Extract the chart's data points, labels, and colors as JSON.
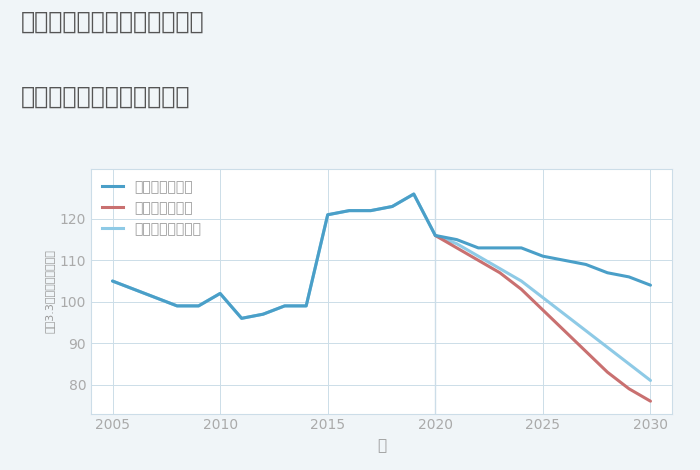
{
  "title_line1": "愛知県稲沢市平和町中三宅の",
  "title_line2": "中古マンションの価格推移",
  "xlabel": "年",
  "ylabel": "坪（3.3㎡）単価（万円）",
  "background_color": "#f0f5f8",
  "plot_background": "#ffffff",
  "good_scenario": {
    "label": "グッドシナリオ",
    "color": "#4a9fc8",
    "years": [
      2005,
      2008,
      2009,
      2010,
      2011,
      2012,
      2013,
      2014,
      2015,
      2016,
      2017,
      2018,
      2019,
      2020,
      2021,
      2022,
      2023,
      2024,
      2025,
      2026,
      2027,
      2028,
      2029,
      2030
    ],
    "values": [
      105,
      99,
      99,
      102,
      96,
      97,
      99,
      99,
      121,
      122,
      122,
      123,
      126,
      116,
      115,
      113,
      113,
      113,
      111,
      110,
      109,
      107,
      106,
      104
    ],
    "linewidth": 2.2,
    "zorder": 4
  },
  "bad_scenario": {
    "label": "バッドシナリオ",
    "color": "#c97070",
    "years": [
      2020,
      2021,
      2022,
      2023,
      2024,
      2025,
      2026,
      2027,
      2028,
      2029,
      2030
    ],
    "values": [
      116,
      113,
      110,
      107,
      103,
      98,
      93,
      88,
      83,
      79,
      76
    ],
    "linewidth": 2.2,
    "zorder": 3
  },
  "normal_scenario": {
    "label": "ノーマルシナリオ",
    "color": "#8ecae6",
    "years": [
      2005,
      2008,
      2009,
      2010,
      2011,
      2012,
      2013,
      2014,
      2015,
      2016,
      2017,
      2018,
      2019,
      2020,
      2021,
      2022,
      2023,
      2024,
      2025,
      2026,
      2027,
      2028,
      2029,
      2030
    ],
    "values": [
      105,
      99,
      99,
      102,
      96,
      97,
      99,
      99,
      121,
      122,
      122,
      123,
      126,
      116,
      114,
      111,
      108,
      105,
      101,
      97,
      93,
      89,
      85,
      81
    ],
    "linewidth": 2.2,
    "zorder": 2
  },
  "ylim": [
    73,
    132
  ],
  "yticks": [
    80,
    90,
    100,
    110,
    120
  ],
  "xlim": [
    2004,
    2031
  ],
  "xticks": [
    2005,
    2010,
    2015,
    2020,
    2025,
    2030
  ],
  "grid_color": "#ccdde8",
  "vline_color": "#ccdde8",
  "title_color": "#555555",
  "title_fontsize": 17,
  "axis_label_color": "#999999",
  "tick_color": "#aaaaaa",
  "tick_fontsize": 10,
  "legend_fontsize": 10
}
